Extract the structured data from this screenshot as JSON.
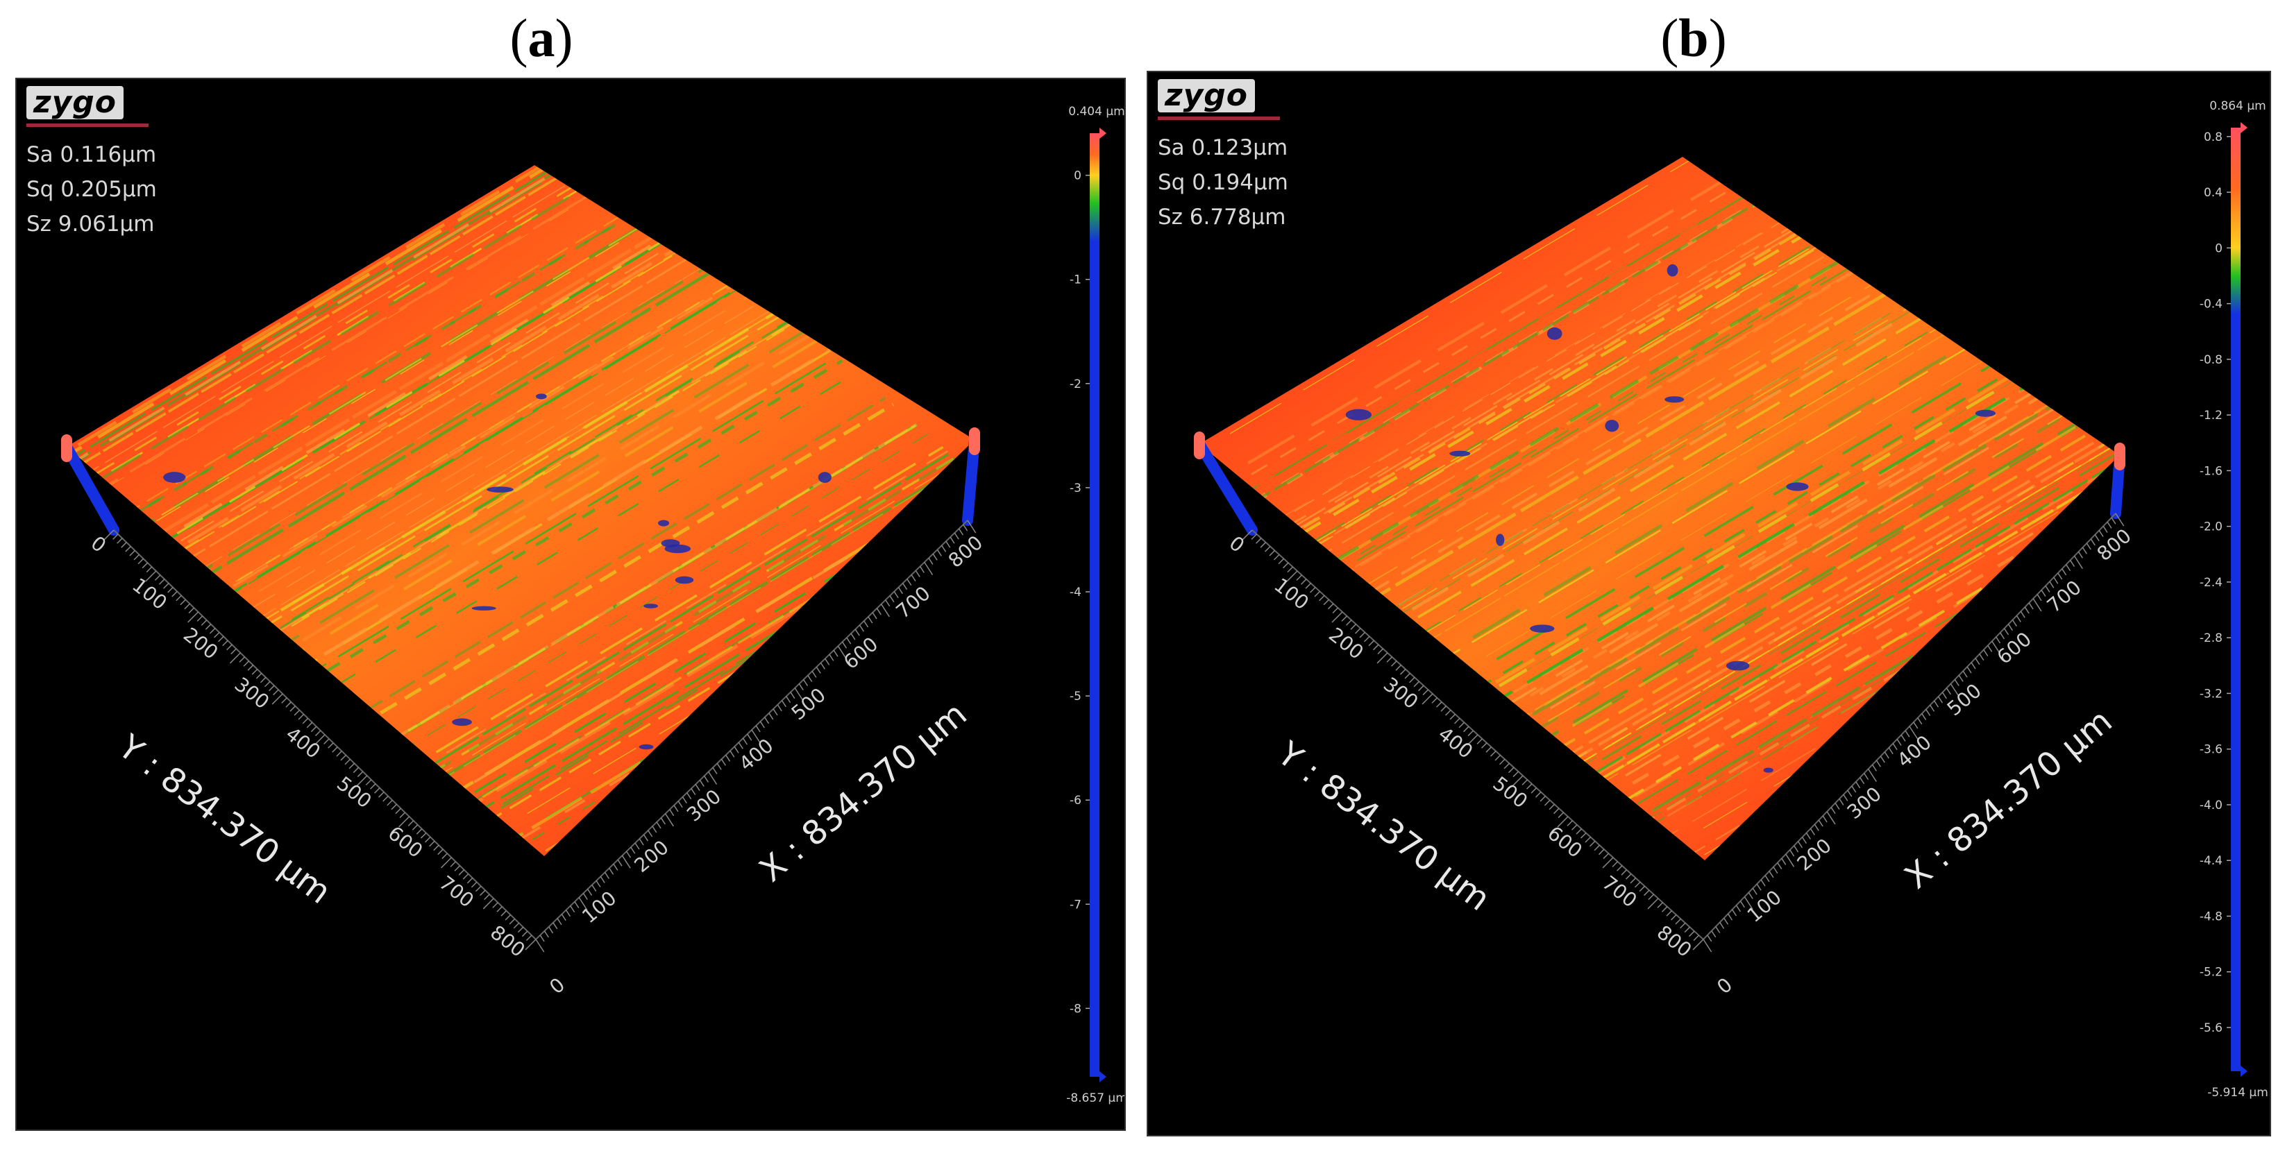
{
  "panels": [
    {
      "label": "a",
      "brand": "zygo",
      "stats": [
        "Sa 0.116µm",
        "Sq 0.205µm",
        "Sz 9.061µm"
      ],
      "scale_max": "0.404 µm",
      "scale_min": "-8.657 µm",
      "scale_ticks": [
        "0",
        "-1",
        "-2",
        "-3",
        "-4",
        "-5",
        "-6",
        "-7",
        "-8"
      ],
      "scale_tick_values": [
        0,
        -1,
        -2,
        -3,
        -4,
        -5,
        -6,
        -7,
        -8
      ],
      "scale_range": [
        -8.657,
        0.404
      ],
      "x_axis_label": "X : 834.370 µm",
      "y_axis_label": "Y : 834.370 µm",
      "x_ticks": [
        "100",
        "200",
        "300",
        "400",
        "500",
        "600",
        "700",
        "800"
      ],
      "y_ticks": [
        "0",
        "100",
        "200",
        "300",
        "400",
        "500",
        "600",
        "700",
        "800"
      ],
      "origin_tick": "0"
    },
    {
      "label": "b",
      "brand": "zygo",
      "stats": [
        "Sa 0.123µm",
        "Sq 0.194µm",
        "Sz 6.778µm"
      ],
      "scale_max": "0.864 µm",
      "scale_min": "-5.914 µm",
      "scale_ticks": [
        "0.8",
        "0.4",
        "0",
        "-0.4",
        "-0.8",
        "-1.2",
        "-1.6",
        "-2.0",
        "-2.4",
        "-2.8",
        "-3.2",
        "-3.6",
        "-4.0",
        "-4.4",
        "-4.8",
        "-5.2",
        "-5.6"
      ],
      "scale_tick_values": [
        0.8,
        0.4,
        0,
        -0.4,
        -0.8,
        -1.2,
        -1.6,
        -2.0,
        -2.4,
        -2.8,
        -3.2,
        -3.6,
        -4.0,
        -4.4,
        -4.8,
        -5.2,
        -5.6
      ],
      "scale_range": [
        -5.914,
        0.864
      ],
      "x_axis_label": "X : 834.370 µm",
      "y_axis_label": "Y : 834.370 µm",
      "x_ticks": [
        "100",
        "200",
        "300",
        "400",
        "500",
        "600",
        "700",
        "800"
      ],
      "y_ticks": [
        "0",
        "100",
        "200",
        "300",
        "400",
        "500",
        "600",
        "700",
        "800"
      ],
      "origin_tick": "0"
    }
  ],
  "colors": {
    "surface_red": "#ff2a1a",
    "surface_orange": "#ff7a1a",
    "ridge_yellow": "#e8d020",
    "groove_green": "#22b822",
    "pit_blue": "#1a2aaa",
    "scale_blue": "#1530e0"
  }
}
